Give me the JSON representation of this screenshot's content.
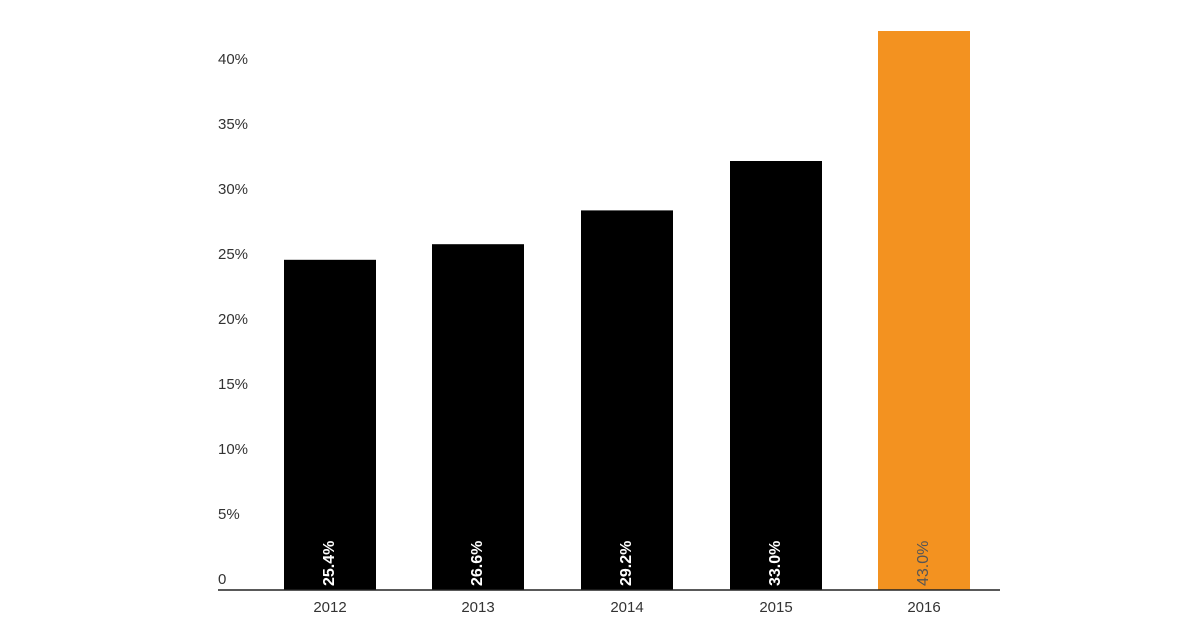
{
  "chart_data": {
    "type": "bar",
    "categories": [
      "2012",
      "2013",
      "2014",
      "2015",
      "2016"
    ],
    "values": [
      25.4,
      26.6,
      29.2,
      33.0,
      43.0
    ],
    "value_labels": [
      "25.4%",
      "26.6%",
      "29.2%",
      "33.0%",
      "43.0%"
    ],
    "colors": [
      "#000000",
      "#000000",
      "#000000",
      "#000000",
      "#f39220"
    ],
    "value_label_colors": [
      "#ffffff",
      "#ffffff",
      "#ffffff",
      "#ffffff",
      "#555555"
    ],
    "ylim": [
      0,
      45
    ],
    "yticks": [
      0,
      {
        "value": 5,
        "label": "5%"
      },
      {
        "value": 10,
        "label": "10%"
      },
      {
        "value": 15,
        "label": "15%"
      },
      {
        "value": 20,
        "label": "20%"
      },
      {
        "value": 25,
        "label": "25%"
      },
      {
        "value": 30,
        "label": "30%"
      },
      {
        "value": 35,
        "label": "35%"
      },
      {
        "value": 40,
        "label": "40%"
      }
    ]
  }
}
